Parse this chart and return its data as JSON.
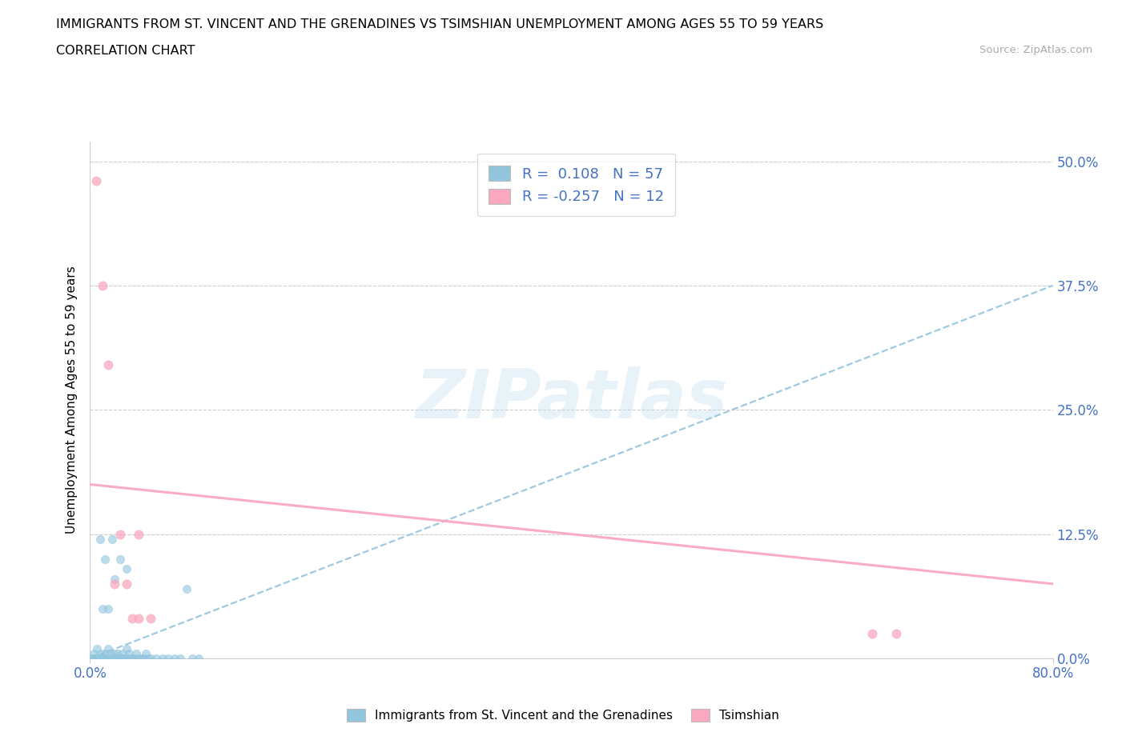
{
  "title_line1": "IMMIGRANTS FROM ST. VINCENT AND THE GRENADINES VS TSIMSHIAN UNEMPLOYMENT AMONG AGES 55 TO 59 YEARS",
  "title_line2": "CORRELATION CHART",
  "source_text": "Source: ZipAtlas.com",
  "ylabel": "Unemployment Among Ages 55 to 59 years",
  "ytick_vals": [
    0.0,
    0.125,
    0.25,
    0.375,
    0.5
  ],
  "ytick_labels": [
    "0.0%",
    "12.5%",
    "25.0%",
    "37.5%",
    "50.0%"
  ],
  "xmin": 0.0,
  "xmax": 0.8,
  "ymin": 0.0,
  "ymax": 0.52,
  "blue_color": "#92c5de",
  "pink_color": "#f9a8c0",
  "legend1_text": "R =  0.108   N = 57",
  "legend2_text": "R = -0.257   N = 12",
  "legend1_label": "Immigrants from St. Vincent and the Grenadines",
  "legend2_label": "Tsimshian",
  "blue_scatter_x": [
    0.002,
    0.003,
    0.004,
    0.005,
    0.006,
    0.007,
    0.008,
    0.009,
    0.01,
    0.011,
    0.012,
    0.013,
    0.014,
    0.015,
    0.016,
    0.017,
    0.018,
    0.019,
    0.02,
    0.021,
    0.022,
    0.023,
    0.024,
    0.025,
    0.026,
    0.027,
    0.028,
    0.029,
    0.03,
    0.031,
    0.032,
    0.033,
    0.035,
    0.036,
    0.038,
    0.04,
    0.042,
    0.044,
    0.046,
    0.048,
    0.05,
    0.055,
    0.06,
    0.065,
    0.07,
    0.075,
    0.08,
    0.085,
    0.09,
    0.01,
    0.015,
    0.02,
    0.008,
    0.012,
    0.018,
    0.025,
    0.03
  ],
  "blue_scatter_y": [
    0.0,
    0.005,
    0.0,
    0.0,
    0.01,
    0.0,
    0.0,
    0.005,
    0.0,
    0.0,
    0.005,
    0.0,
    0.0,
    0.01,
    0.0,
    0.005,
    0.0,
    0.0,
    0.005,
    0.0,
    0.0,
    0.005,
    0.0,
    0.0,
    0.0,
    0.005,
    0.0,
    0.0,
    0.01,
    0.0,
    0.005,
    0.0,
    0.0,
    0.0,
    0.005,
    0.0,
    0.0,
    0.0,
    0.005,
    0.0,
    0.0,
    0.0,
    0.0,
    0.0,
    0.0,
    0.0,
    0.07,
    0.0,
    0.0,
    0.05,
    0.05,
    0.08,
    0.12,
    0.1,
    0.12,
    0.1,
    0.09
  ],
  "pink_scatter_x": [
    0.005,
    0.01,
    0.015,
    0.025,
    0.04,
    0.04,
    0.65,
    0.67,
    0.02,
    0.03,
    0.035,
    0.05
  ],
  "pink_scatter_y": [
    0.48,
    0.375,
    0.295,
    0.125,
    0.125,
    0.04,
    0.025,
    0.025,
    0.075,
    0.075,
    0.04,
    0.04
  ],
  "blue_trend_x": [
    0.0,
    0.8
  ],
  "blue_trend_y": [
    0.0,
    0.375
  ],
  "pink_trend_x": [
    0.0,
    0.8
  ],
  "pink_trend_y": [
    0.175,
    0.075
  ]
}
